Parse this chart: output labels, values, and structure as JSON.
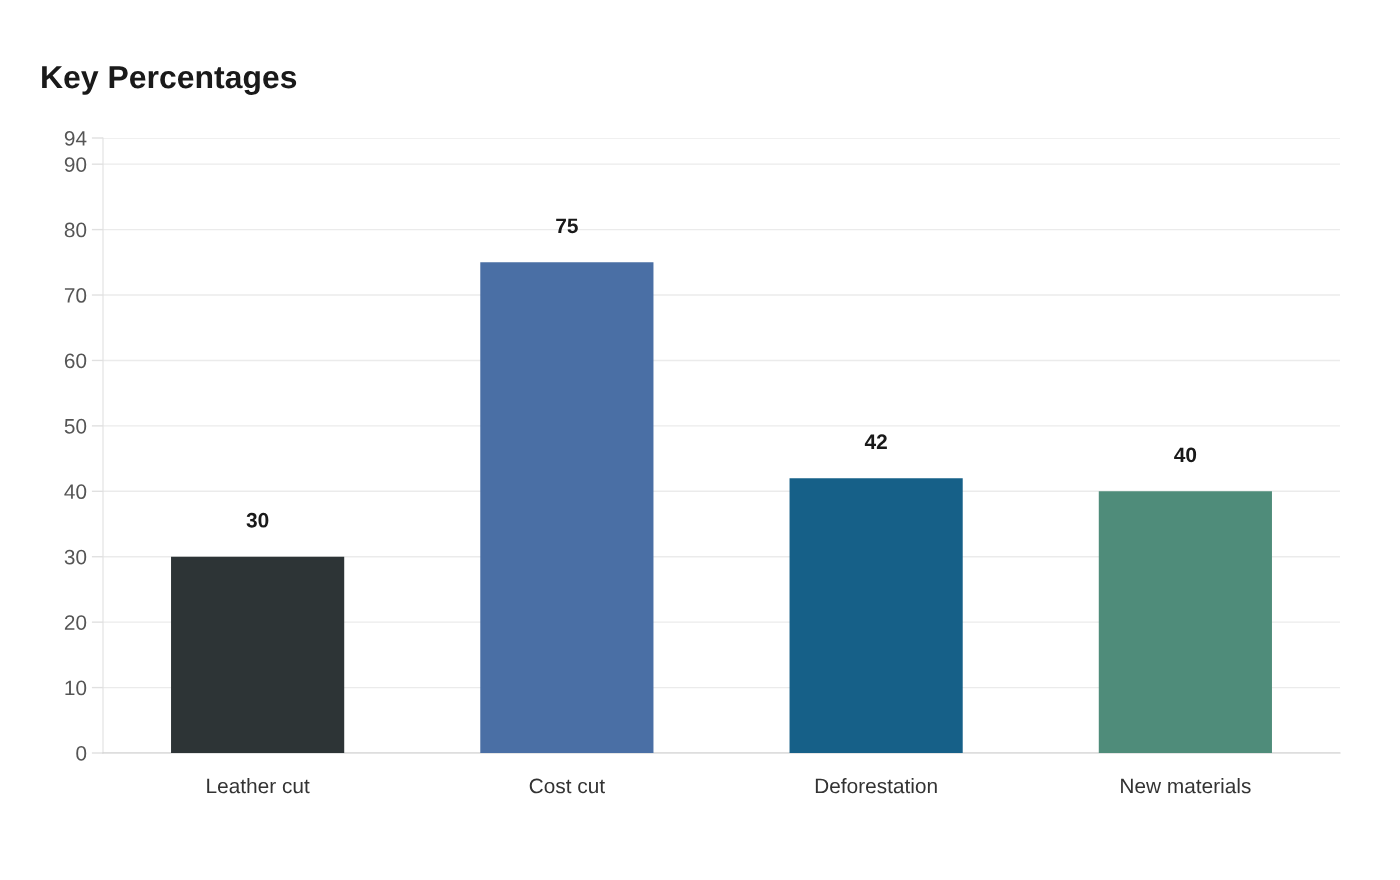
{
  "chart_data": {
    "type": "bar",
    "title": "Key Percentages",
    "categories": [
      "Leather cut",
      "Cost cut",
      "Deforestation",
      "New materials"
    ],
    "values": [
      30,
      75,
      42,
      40
    ],
    "colors": [
      "#2d3436",
      "#4a6fa5",
      "#166088",
      "#4f8c7a"
    ],
    "ylim": [
      0,
      94
    ],
    "yticks": [
      0,
      10,
      20,
      30,
      40,
      50,
      60,
      70,
      80,
      90,
      94
    ],
    "grid": "y",
    "data_labels": true
  }
}
